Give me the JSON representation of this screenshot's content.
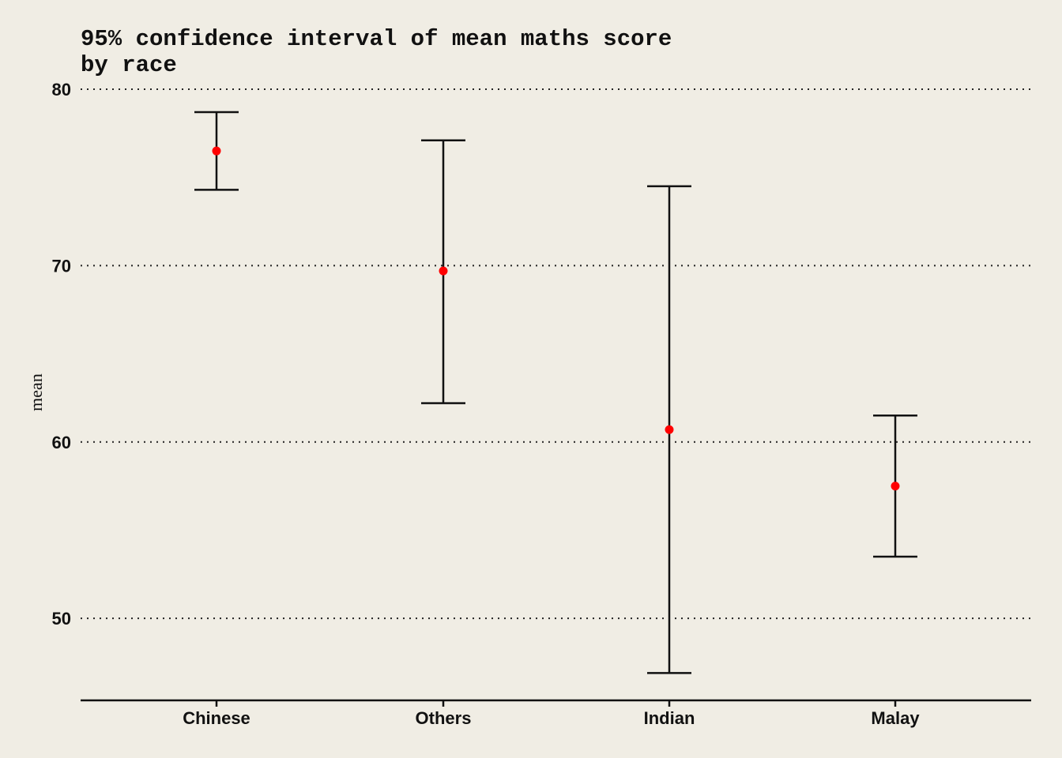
{
  "chart_data": {
    "type": "errorbar",
    "title": "95% confidence interval of mean maths score by race",
    "title_lines": [
      "95% confidence interval of mean maths score",
      "by race"
    ],
    "xlabel": "",
    "ylabel": "mean",
    "categories": [
      "Chinese",
      "Others",
      "Indian",
      "Malay"
    ],
    "points": [
      {
        "category": "Chinese",
        "mean": 76.5,
        "lower": 74.3,
        "upper": 78.7
      },
      {
        "category": "Others",
        "mean": 69.7,
        "lower": 62.2,
        "upper": 77.1
      },
      {
        "category": "Indian",
        "mean": 60.7,
        "lower": 46.9,
        "upper": 74.5
      },
      {
        "category": "Malay",
        "mean": 57.5,
        "lower": 53.5,
        "upper": 61.5
      }
    ],
    "ylim": [
      45.35,
      80.0
    ],
    "yticks": [
      50,
      60,
      70,
      80
    ],
    "ytick_labels": [
      "50",
      "60",
      "70",
      "80"
    ],
    "grid": "horizontal dotted",
    "legend": "none",
    "colors": {
      "background": "#F0EDE4",
      "point": "#FF0000",
      "bar": "#111111"
    }
  }
}
